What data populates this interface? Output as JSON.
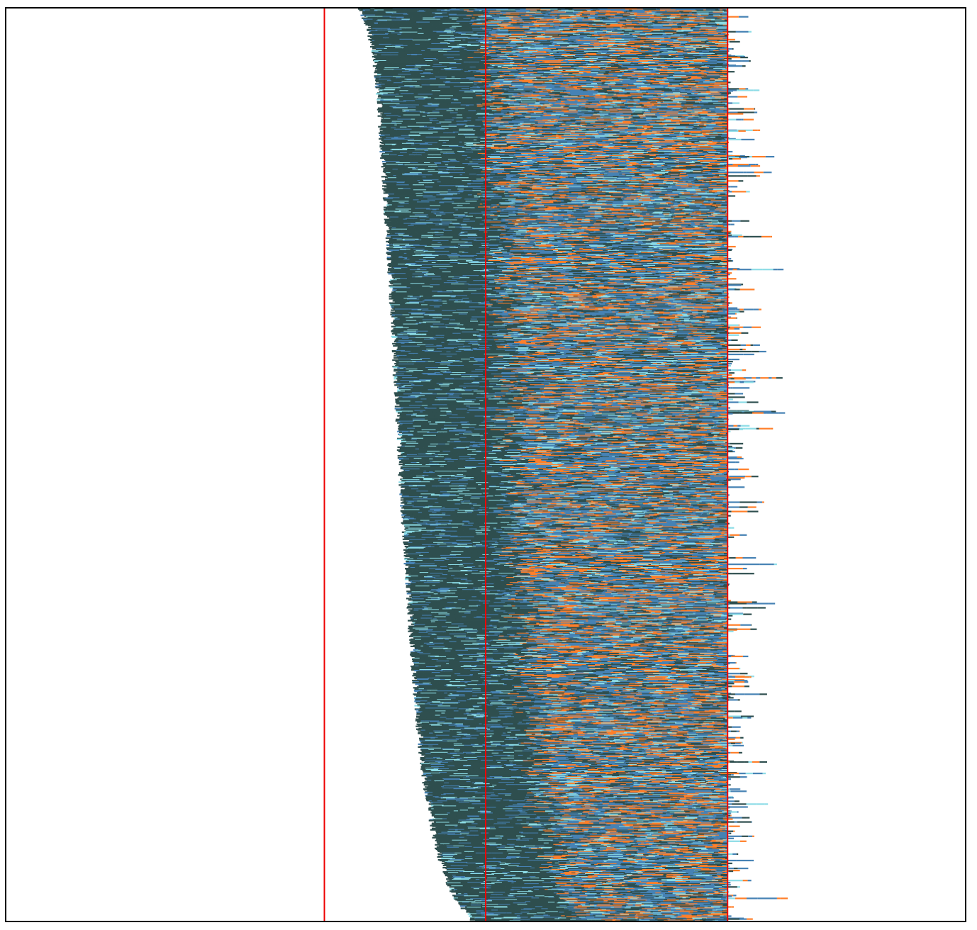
{
  "chart_data": {
    "type": "scatter",
    "title": "",
    "xlabel": "",
    "ylabel": "",
    "xlim": [
      0,
      100
    ],
    "ylim": [
      0,
      100
    ],
    "grid": false,
    "legend": "none",
    "vertical_lines": [
      33.2,
      50.0,
      75.2
    ],
    "rows": 1280,
    "boundary_profile": {
      "y": [
        0,
        2,
        4,
        6,
        8,
        10,
        20,
        30,
        40,
        50,
        60,
        70,
        80,
        85,
        90,
        93,
        96,
        98,
        100
      ],
      "x": [
        36.9,
        37.8,
        38.3,
        38.6,
        38.8,
        39.0,
        39.6,
        40.2,
        40.7,
        41.2,
        41.8,
        42.4,
        43.2,
        43.8,
        44.6,
        45.3,
        46.3,
        47.3,
        48.9
      ]
    },
    "series": [
      {
        "color": "#2f4f4f",
        "share_near_boundary": 0.8,
        "share_elsewhere": 0.28
      },
      {
        "color": "#4682b4",
        "share_near_boundary": 0.12,
        "share_elsewhere": 0.38
      },
      {
        "color": "#ff7f2a",
        "share_near_boundary": 0.0,
        "share_elsewhere": 0.22
      },
      {
        "color": "#8cdce6",
        "share_near_boundary": 0.08,
        "share_elsewhere": 0.12
      }
    ],
    "colors": {
      "frame": "#000000",
      "reference_line": "#ee0000",
      "background": "#ffffff"
    }
  }
}
